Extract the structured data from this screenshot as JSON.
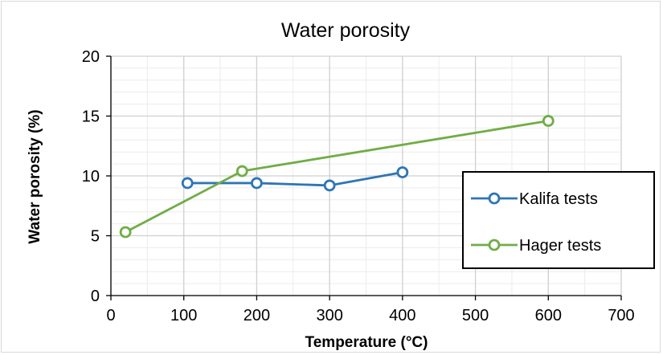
{
  "chart_data": {
    "type": "line",
    "title": "Water porosity",
    "xlabel": "Temperature (°C)",
    "ylabel": "Water porosity (%)",
    "xlim": [
      0,
      700
    ],
    "ylim": [
      0,
      20
    ],
    "xticks": [
      0,
      100,
      200,
      300,
      400,
      500,
      600,
      700
    ],
    "yticks": [
      0,
      5,
      10,
      15,
      20
    ],
    "minor_grid_x": 50,
    "minor_grid_y": 1,
    "grid": true,
    "legend_position": "right",
    "series": [
      {
        "name": "Kalifa tests",
        "color": "#2e75b6",
        "marker": "open-circle",
        "x": [
          105,
          200,
          300,
          400
        ],
        "y": [
          9.4,
          9.4,
          9.2,
          10.3
        ]
      },
      {
        "name": "Hager tests",
        "color": "#70ad47",
        "marker": "open-circle",
        "x": [
          20,
          180,
          600
        ],
        "y": [
          5.3,
          10.4,
          14.6
        ]
      }
    ]
  }
}
